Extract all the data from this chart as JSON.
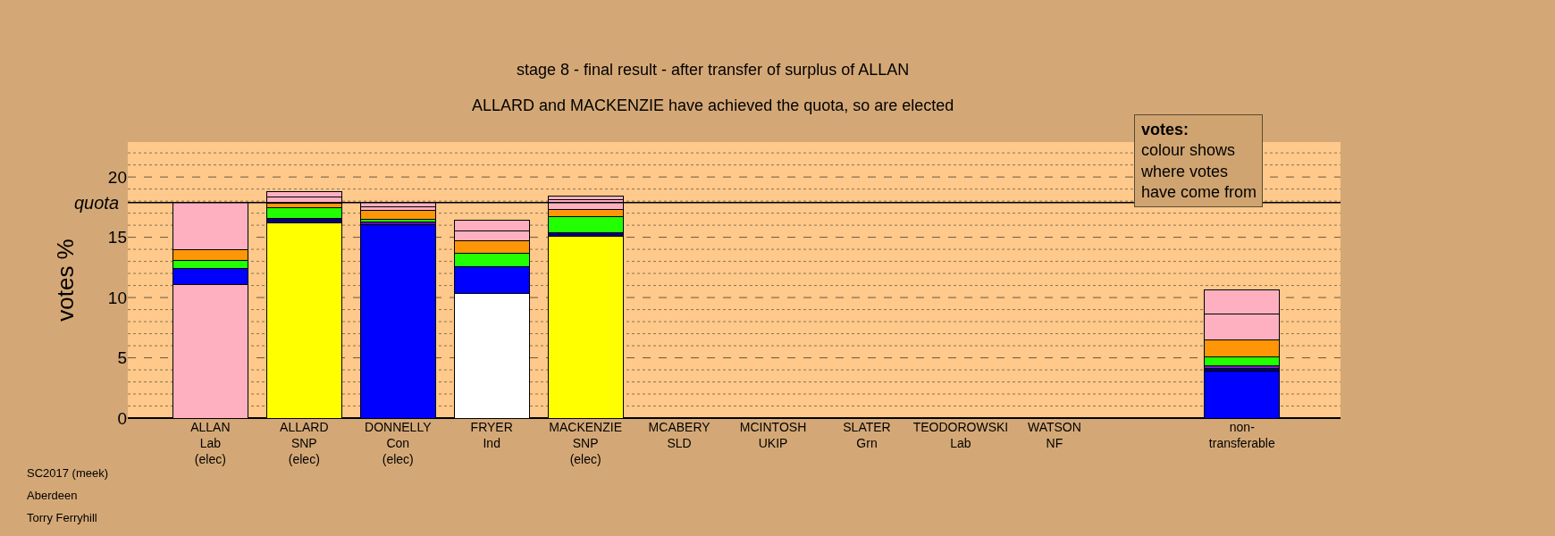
{
  "chart_data": {
    "type": "bar",
    "stacked": true,
    "title": "stage 8 - final result - after transfer of surplus of ALLAN",
    "subtitle": "ALLARD and MACKENZIE have achieved the quota, so are elected",
    "ylabel": "votes %",
    "categories": [
      "ALLAN\nLab\n(elec)",
      "ALLARD\nSNP\n(elec)",
      "DONNELLY\nCon\n(elec)",
      "FRYER\nInd",
      "MACKENZIE\nSNP\n(elec)",
      "MCABERY\nSLD",
      "MCINTOSH\nUKIP",
      "SLATER\nGrn",
      "TEODOROWSKI\nLab",
      "WATSON\nNF",
      null,
      "non-\ntransferable"
    ],
    "series": [
      {
        "colors": [
          "#ffb0c0",
          "#ffff00",
          "#0000ff",
          "#ffffff",
          "#ffff00",
          null,
          null,
          null,
          null,
          null,
          null,
          "#0000ff"
        ],
        "values": [
          11.05,
          16.21,
          16.08,
          10.36,
          15.1,
          null,
          null,
          null,
          null,
          null,
          null,
          3.9
        ]
      },
      {
        "colors": [
          "#0000ff",
          "#000080",
          "#6a0dad",
          "#0000ff",
          "#000080",
          null,
          null,
          null,
          null,
          null,
          null,
          "#000080"
        ],
        "values": [
          1.37,
          0.37,
          0.18,
          2.22,
          0.26,
          null,
          null,
          null,
          null,
          null,
          null,
          0.18
        ]
      },
      {
        "colors": [
          null,
          null,
          null,
          null,
          null,
          null,
          null,
          null,
          null,
          null,
          null,
          "#7a1fc0"
        ],
        "values": [
          null,
          null,
          null,
          null,
          null,
          null,
          null,
          null,
          null,
          null,
          null,
          0.24
        ]
      },
      {
        "colors": [
          "#22ff00",
          "#22ff00",
          "#22ff00",
          "#22ff00",
          "#22ff00",
          null,
          null,
          null,
          null,
          null,
          null,
          "#22ff00"
        ],
        "values": [
          0.64,
          0.85,
          0.22,
          1.12,
          1.36,
          null,
          null,
          null,
          null,
          null,
          null,
          0.79
        ]
      },
      {
        "colors": [
          "#ff9608",
          "#ff9608",
          "#ff9608",
          "#ff9608",
          "#ff9608",
          null,
          null,
          null,
          null,
          null,
          null,
          "#ff9608"
        ],
        "values": [
          0.93,
          0.37,
          0.74,
          1.0,
          0.55,
          null,
          null,
          null,
          null,
          null,
          null,
          1.41
        ]
      },
      {
        "colors": [
          "#ffb0c0",
          "#ffb0c0",
          "#ffb0c0",
          "#ffb0c0",
          "#ffb0c0",
          null,
          null,
          null,
          null,
          null,
          null,
          "#ffb0c0"
        ],
        "values": [
          3.89,
          0.53,
          0.29,
          0.85,
          0.82,
          null,
          null,
          null,
          null,
          null,
          null,
          2.1
        ]
      },
      {
        "colors": [
          null,
          "#ffb0c0",
          "#ffb0c0",
          "#ffb0c0",
          "#ffb0c0",
          null,
          null,
          null,
          null,
          null,
          null,
          "#ffb0c0"
        ],
        "values": [
          null,
          0.48,
          0.37,
          0.87,
          0.32,
          null,
          null,
          null,
          null,
          null,
          null,
          2.01
        ]
      }
    ],
    "ylim": [
      0,
      22.9
    ],
    "yticks": [
      0,
      {
        "value": 1,
        "label": null
      },
      {
        "value": 2,
        "label": null
      },
      {
        "value": 3,
        "label": null
      },
      {
        "value": 4,
        "label": null
      },
      5,
      {
        "value": 6,
        "label": null
      },
      {
        "value": 7,
        "label": null
      },
      {
        "value": 8,
        "label": null
      },
      {
        "value": 9,
        "label": null
      },
      10,
      {
        "value": 11,
        "label": null
      },
      {
        "value": 12,
        "label": null
      },
      {
        "value": 13,
        "label": null
      },
      {
        "value": 14,
        "label": null
      },
      15,
      {
        "value": 16,
        "label": null
      },
      {
        "value": 17,
        "label": null
      },
      {
        "value": 18,
        "label": null
      },
      {
        "value": 19,
        "label": null
      },
      20,
      {
        "value": 21,
        "label": null
      },
      {
        "value": 22,
        "label": null
      }
    ],
    "grid": "y",
    "ref_lines": [
      {
        "axis": "y",
        "value": 17.88,
        "label": "quota"
      }
    ],
    "annotations": [
      "votes:\ncolour shows\nwhere votes\nhave come from",
      "SC2017 (meek)",
      "Aberdeen",
      "Torry Ferryhill"
    ]
  }
}
